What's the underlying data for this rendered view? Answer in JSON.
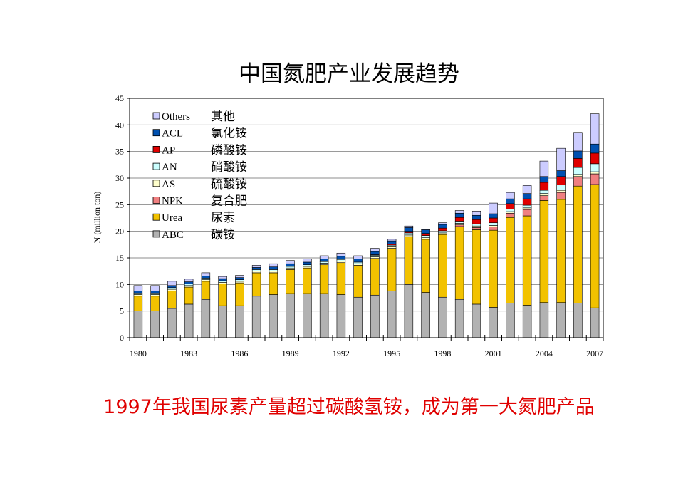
{
  "slide": {
    "title": "中国氮肥产业发展趋势",
    "caption": "1997年我国尿素产量超过碳酸氢铵，成为第一大氮肥产品"
  },
  "chart_data": {
    "type": "bar",
    "stacked": true,
    "title": "中国氮肥产业发展趋势",
    "xlabel": "",
    "ylabel": "N (million ton)",
    "ylim": [
      0,
      45
    ],
    "yticks": [
      0,
      5,
      10,
      15,
      20,
      25,
      30,
      35,
      40,
      45
    ],
    "x": [
      1980,
      1981,
      1982,
      1983,
      1984,
      1985,
      1986,
      1987,
      1988,
      1989,
      1990,
      1991,
      1992,
      1993,
      1994,
      1995,
      1996,
      1997,
      1998,
      1999,
      2000,
      2001,
      2002,
      2003,
      2004,
      2005,
      2006,
      2007
    ],
    "xtick_labels": [
      "1980",
      "1983",
      "1986",
      "1989",
      "1992",
      "1995",
      "1998",
      "2001",
      "2004",
      "2007"
    ],
    "legend_position": "top-left",
    "grid": true,
    "series": [
      {
        "name": "ABC",
        "label_cn": "碳铵",
        "color": "#b2b2b2",
        "values": [
          5.0,
          5.0,
          5.5,
          6.3,
          7.2,
          6.0,
          6.0,
          7.8,
          8.1,
          8.3,
          8.3,
          8.3,
          8.1,
          7.6,
          8.0,
          8.8,
          10.0,
          8.5,
          7.6,
          7.2,
          6.3,
          5.7,
          6.5,
          6.1,
          6.6,
          6.6,
          6.5,
          5.6
        ]
      },
      {
        "name": "Urea",
        "label_cn": "尿素",
        "color": "#f2c200",
        "values": [
          2.8,
          2.8,
          3.3,
          3.2,
          3.4,
          4.1,
          4.3,
          4.4,
          4.1,
          4.5,
          4.8,
          5.4,
          6.0,
          6.0,
          6.9,
          8.0,
          9.0,
          10.0,
          11.8,
          13.7,
          14.0,
          14.5,
          16.1,
          16.8,
          19.2,
          19.4,
          22.0,
          23.2
        ]
      },
      {
        "name": "NPK",
        "label_cn": "复合肥",
        "color": "#f07f80",
        "values": [
          0,
          0,
          0,
          0,
          0,
          0,
          0,
          0,
          0,
          0,
          0,
          0,
          0,
          0,
          0,
          0,
          0,
          0,
          0,
          0.3,
          0.4,
          0.6,
          0.8,
          1.2,
          0.9,
          1.3,
          1.8,
          2.0
        ]
      },
      {
        "name": "AS",
        "label_cn": "硫酸铵",
        "color": "#ffffcc",
        "values": [
          0.3,
          0.3,
          0.3,
          0.3,
          0.3,
          0.3,
          0.3,
          0.3,
          0.3,
          0.3,
          0.3,
          0.3,
          0.3,
          0.3,
          0.3,
          0.3,
          0.3,
          0.3,
          0.3,
          0.3,
          0.3,
          0.3,
          0.3,
          0.3,
          0.4,
          0.4,
          0.4,
          0.4
        ]
      },
      {
        "name": "AN",
        "label_cn": "硝酸铵",
        "color": "#ccffff",
        "values": [
          0.3,
          0.3,
          0.3,
          0.3,
          0.3,
          0.3,
          0.3,
          0.3,
          0.3,
          0.3,
          0.3,
          0.3,
          0.3,
          0.3,
          0.3,
          0.3,
          0.4,
          0.4,
          0.4,
          0.4,
          0.4,
          0.5,
          0.5,
          0.5,
          0.6,
          1.0,
          1.3,
          1.5
        ]
      },
      {
        "name": "AP",
        "label_cn": "磷酸铵",
        "color": "#e00000",
        "values": [
          0,
          0,
          0,
          0,
          0,
          0,
          0,
          0,
          0,
          0,
          0,
          0,
          0,
          0,
          0.1,
          0.2,
          0.3,
          0.4,
          0.5,
          0.7,
          0.8,
          0.9,
          1.0,
          1.2,
          1.5,
          1.6,
          1.7,
          2.0
        ]
      },
      {
        "name": "ACL",
        "label_cn": "氯化铵",
        "color": "#0050b0",
        "values": [
          0.4,
          0.4,
          0.4,
          0.4,
          0.4,
          0.4,
          0.4,
          0.4,
          0.5,
          0.5,
          0.5,
          0.5,
          0.6,
          0.6,
          0.6,
          0.6,
          0.7,
          0.7,
          0.7,
          0.8,
          0.8,
          0.8,
          0.9,
          1.0,
          1.1,
          1.1,
          1.4,
          1.7
        ]
      },
      {
        "name": "Others",
        "label_cn": "其他",
        "color": "#ccccff",
        "values": [
          1.0,
          1.0,
          0.8,
          0.5,
          0.6,
          0.4,
          0.4,
          0.4,
          0.6,
          0.6,
          0.6,
          0.6,
          0.6,
          0.6,
          0.6,
          0.3,
          0.3,
          0.1,
          0.3,
          0.5,
          0.8,
          2.0,
          1.2,
          1.5,
          2.9,
          4.2,
          3.5,
          5.7
        ]
      }
    ]
  }
}
